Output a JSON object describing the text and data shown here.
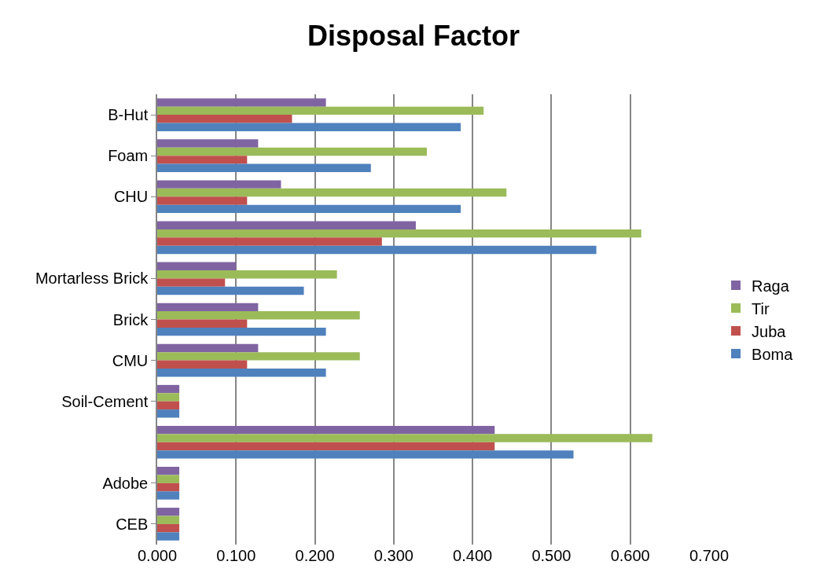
{
  "chart_data": {
    "type": "bar",
    "orientation": "horizontal",
    "title": "Disposal Factor",
    "categories": [
      "B-Hut",
      "Foam",
      "CHU",
      null,
      "Mortarless Brick",
      "Brick",
      "CMU",
      "Soil-Cement",
      null,
      "Adobe",
      "CEB"
    ],
    "series": [
      {
        "name": "Raga",
        "color": "#8064a2",
        "values": [
          0.214,
          0.128,
          0.157,
          0.328,
          0.1,
          0.128,
          0.128,
          0.028,
          0.428,
          0.028,
          0.028
        ]
      },
      {
        "name": "Tir",
        "color": "#9bbb59",
        "values": [
          0.414,
          0.342,
          0.443,
          0.614,
          0.228,
          0.257,
          0.257,
          0.028,
          0.628,
          0.028,
          0.028
        ]
      },
      {
        "name": "Juba",
        "color": "#c0504d",
        "values": [
          0.171,
          0.114,
          0.114,
          0.285,
          0.086,
          0.114,
          0.114,
          0.028,
          0.428,
          0.028,
          0.028
        ]
      },
      {
        "name": "Boma",
        "color": "#4f81bd",
        "values": [
          0.385,
          0.271,
          0.385,
          0.557,
          0.186,
          0.214,
          0.214,
          0.028,
          0.528,
          0.028,
          0.028
        ]
      }
    ],
    "xlim": [
      0,
      0.7
    ],
    "xticks": [
      {
        "value": 0,
        "label": "0.000"
      },
      {
        "value": 0.1,
        "label": "0.100"
      },
      {
        "value": 0.2,
        "label": "0.200"
      },
      {
        "value": 0.3,
        "label": "0.300"
      },
      {
        "value": 0.4,
        "label": "0.400"
      },
      {
        "value": 0.5,
        "label": "0.500"
      },
      {
        "value": 0.6,
        "label": "0.600"
      },
      {
        "value": 0.7,
        "label": "0.700"
      }
    ],
    "grid": "x",
    "legend": "right"
  }
}
